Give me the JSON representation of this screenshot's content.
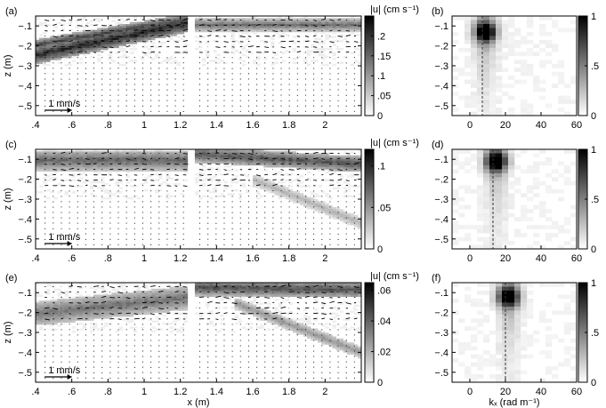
{
  "chart_data": [
    {
      "type": "heatmap",
      "panel_label": "(a)",
      "ylabel": "z (m)",
      "xlabel": "",
      "xlim": [
        0.4,
        2.2
      ],
      "ylim": [
        -0.55,
        -0.05
      ],
      "x_ticks": [
        0.4,
        0.6,
        0.8,
        1,
        1.2,
        1.4,
        1.6,
        1.8,
        2
      ],
      "y_ticks": [
        -0.1,
        -0.2,
        -0.3,
        -0.4,
        -0.5
      ],
      "scale_arrow_label": "1 mm/s",
      "colorbar": {
        "label": "|u| (cm s⁻¹)",
        "range": [
          0,
          0.25
        ],
        "ticks": [
          0,
          0.05,
          0.1,
          0.15,
          0.2
        ]
      },
      "features": [
        {
          "kind": "band",
          "x": [
            0.4,
            1.24
          ],
          "z_start": [
            -0.24,
            -0.08
          ],
          "thickness": 0.045,
          "value": 0.24
        },
        {
          "kind": "band",
          "x": [
            0.4,
            1.24
          ],
          "z_start": [
            -0.19,
            -0.06
          ],
          "thickness": 0.03,
          "value": 0.2
        },
        {
          "kind": "band",
          "x": [
            1.28,
            2.2
          ],
          "z_start": [
            -0.09,
            -0.09
          ],
          "thickness": 0.03,
          "value": 0.16
        }
      ],
      "gap_x": [
        1.23,
        1.27
      ]
    },
    {
      "type": "heatmap",
      "panel_label": "(b)",
      "xlim": [
        -10,
        60
      ],
      "ylim": [
        -0.55,
        -0.05
      ],
      "x_ticks": [
        0,
        20,
        40,
        60
      ],
      "y_ticks": [
        -0.1,
        -0.2,
        -0.3,
        -0.4,
        -0.5
      ],
      "colorbar": {
        "range": [
          0,
          1
        ],
        "ticks": [
          0,
          0.5,
          1
        ]
      },
      "peak_kx": 7,
      "peak_z": -0.12,
      "dashed_line_kx": 7
    },
    {
      "type": "heatmap",
      "panel_label": "(c)",
      "ylabel": "z (m)",
      "xlabel": "",
      "xlim": [
        0.4,
        2.2
      ],
      "ylim": [
        -0.55,
        -0.05
      ],
      "x_ticks": [
        0.4,
        0.6,
        0.8,
        1,
        1.2,
        1.4,
        1.6,
        1.8,
        2
      ],
      "y_ticks": [
        -0.1,
        -0.2,
        -0.3,
        -0.4,
        -0.5
      ],
      "scale_arrow_label": "1 mm/s",
      "colorbar": {
        "label": "|u| (cm s⁻¹)",
        "range": [
          0,
          0.12
        ],
        "ticks": [
          0,
          0.05,
          0.1
        ]
      },
      "features": [
        {
          "kind": "band",
          "x": [
            0.4,
            1.24
          ],
          "z_start": [
            -0.1,
            -0.1
          ],
          "thickness": 0.05,
          "value": 0.08
        },
        {
          "kind": "band",
          "x": [
            1.28,
            2.2
          ],
          "z_start": [
            -0.07,
            -0.12
          ],
          "thickness": 0.04,
          "value": 0.09
        },
        {
          "kind": "band",
          "x": [
            1.6,
            2.2
          ],
          "z_start": [
            -0.2,
            -0.42
          ],
          "thickness": 0.03,
          "value": 0.04
        }
      ],
      "gap_x": [
        1.23,
        1.27
      ]
    },
    {
      "type": "heatmap",
      "panel_label": "(d)",
      "xlim": [
        -10,
        60
      ],
      "ylim": [
        -0.55,
        -0.05
      ],
      "x_ticks": [
        0,
        20,
        40,
        60
      ],
      "y_ticks": [
        -0.1,
        -0.2,
        -0.3,
        -0.4,
        -0.5
      ],
      "colorbar": {
        "range": [
          0,
          1
        ],
        "ticks": [
          0,
          0.5,
          1
        ]
      },
      "peak_kx": 13,
      "peak_z": -0.1,
      "dashed_line_kx": 13
    },
    {
      "type": "heatmap",
      "panel_label": "(e)",
      "ylabel": "z (m)",
      "xlabel": "x (m)",
      "xlim": [
        0.4,
        2.2
      ],
      "ylim": [
        -0.55,
        -0.05
      ],
      "x_ticks": [
        0.4,
        0.6,
        0.8,
        1,
        1.2,
        1.4,
        1.6,
        1.8,
        2
      ],
      "y_ticks": [
        -0.1,
        -0.2,
        -0.3,
        -0.4,
        -0.5
      ],
      "scale_arrow_label": "1 mm/s",
      "colorbar": {
        "label": "|u| (cm s⁻¹)",
        "range": [
          0,
          0.065
        ],
        "ticks": [
          0,
          0.02,
          0.04,
          0.06
        ]
      },
      "features": [
        {
          "kind": "band",
          "x": [
            0.4,
            1.24
          ],
          "z_start": [
            -0.2,
            -0.12
          ],
          "thickness": 0.06,
          "value": 0.04
        },
        {
          "kind": "band",
          "x": [
            1.28,
            2.2
          ],
          "z_start": [
            -0.07,
            -0.08
          ],
          "thickness": 0.04,
          "value": 0.05
        },
        {
          "kind": "band",
          "x": [
            1.5,
            2.2
          ],
          "z_start": [
            -0.15,
            -0.4
          ],
          "thickness": 0.03,
          "value": 0.03
        }
      ],
      "gap_x": [
        1.23,
        1.27
      ]
    },
    {
      "type": "heatmap",
      "panel_label": "(f)",
      "xlabel": "kₓ (rad m⁻¹)",
      "xlim": [
        -10,
        60
      ],
      "ylim": [
        -0.55,
        -0.05
      ],
      "x_ticks": [
        0,
        20,
        40,
        60
      ],
      "y_ticks": [
        -0.1,
        -0.2,
        -0.3,
        -0.4,
        -0.5
      ],
      "colorbar": {
        "range": [
          0,
          1
        ],
        "ticks": [
          0,
          0.5,
          1
        ]
      },
      "peak_kx": 20,
      "peak_z": -0.11,
      "dashed_line_kx": 20
    }
  ]
}
